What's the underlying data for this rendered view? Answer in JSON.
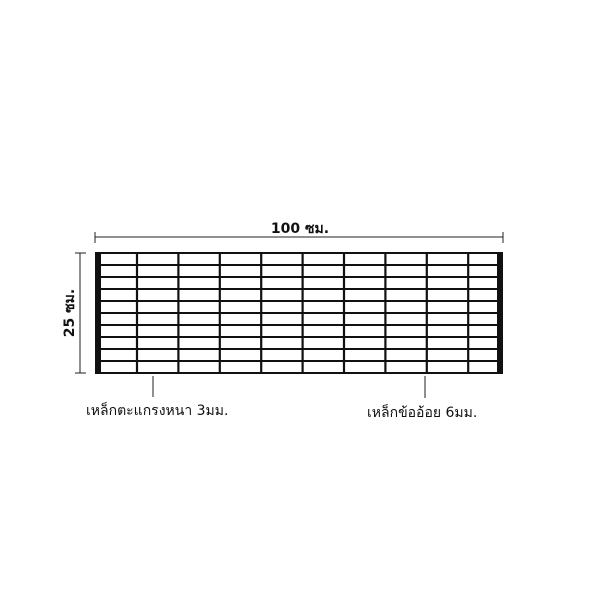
{
  "dimensions": {
    "width": "100 ซม.",
    "height": "25 ซม."
  },
  "callouts": {
    "bearing_bar": "เหล็กตะแกรงหนา 3มม.",
    "cross_bar": "เหล็กข้ออ้อย 6มม."
  },
  "grating": {
    "columns": 10,
    "rows": 10
  },
  "colors": {
    "line": "#111111",
    "background": "#ffffff"
  }
}
